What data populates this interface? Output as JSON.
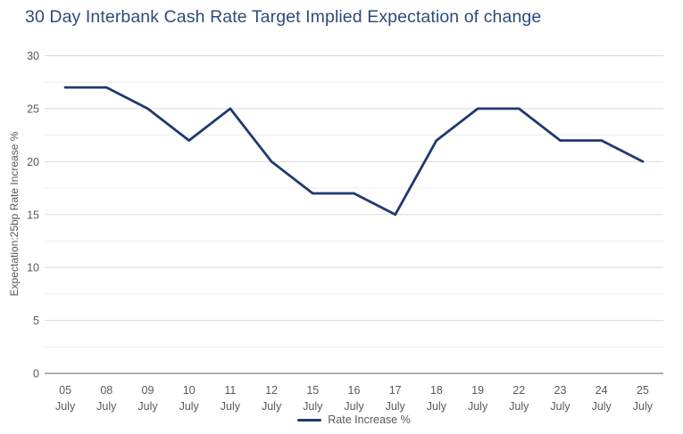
{
  "title": "30 Day Interbank Cash Rate Target Implied Expectation of change",
  "legend": {
    "label": "Rate Increase %"
  },
  "chart_data": {
    "type": "line",
    "title": "30 Day Interbank Cash Rate Target Implied Expectation of change",
    "categories": [
      "05 July",
      "08 July",
      "09 July",
      "10 July",
      "11 July",
      "12 July",
      "15 July",
      "16 July",
      "17 July",
      "18 July",
      "19 July",
      "22 July",
      "23 July",
      "24 July",
      "25 July"
    ],
    "series": [
      {
        "name": "Rate Increase %",
        "values": [
          27,
          27,
          25,
          22,
          25,
          20,
          17,
          17,
          15,
          22,
          25,
          25,
          22,
          22,
          20
        ]
      }
    ],
    "xlabel": "",
    "ylabel": "Expectation:25bp Rate Increase %",
    "ylim": [
      0,
      30
    ],
    "yticks": [
      0,
      5,
      10,
      15,
      20,
      25,
      30
    ],
    "minor_tick_step": 2.5,
    "grid": "on",
    "legend_position": "bottom-center"
  },
  "colors": {
    "title": "#2d4b7d",
    "series_line": "#1e3a6e",
    "tick_label": "#595959",
    "axis_title": "#595959",
    "grid_major": "#d8d8d8",
    "grid_minor": "#ececec",
    "axis_line": "#808080",
    "background": "#ffffff"
  }
}
